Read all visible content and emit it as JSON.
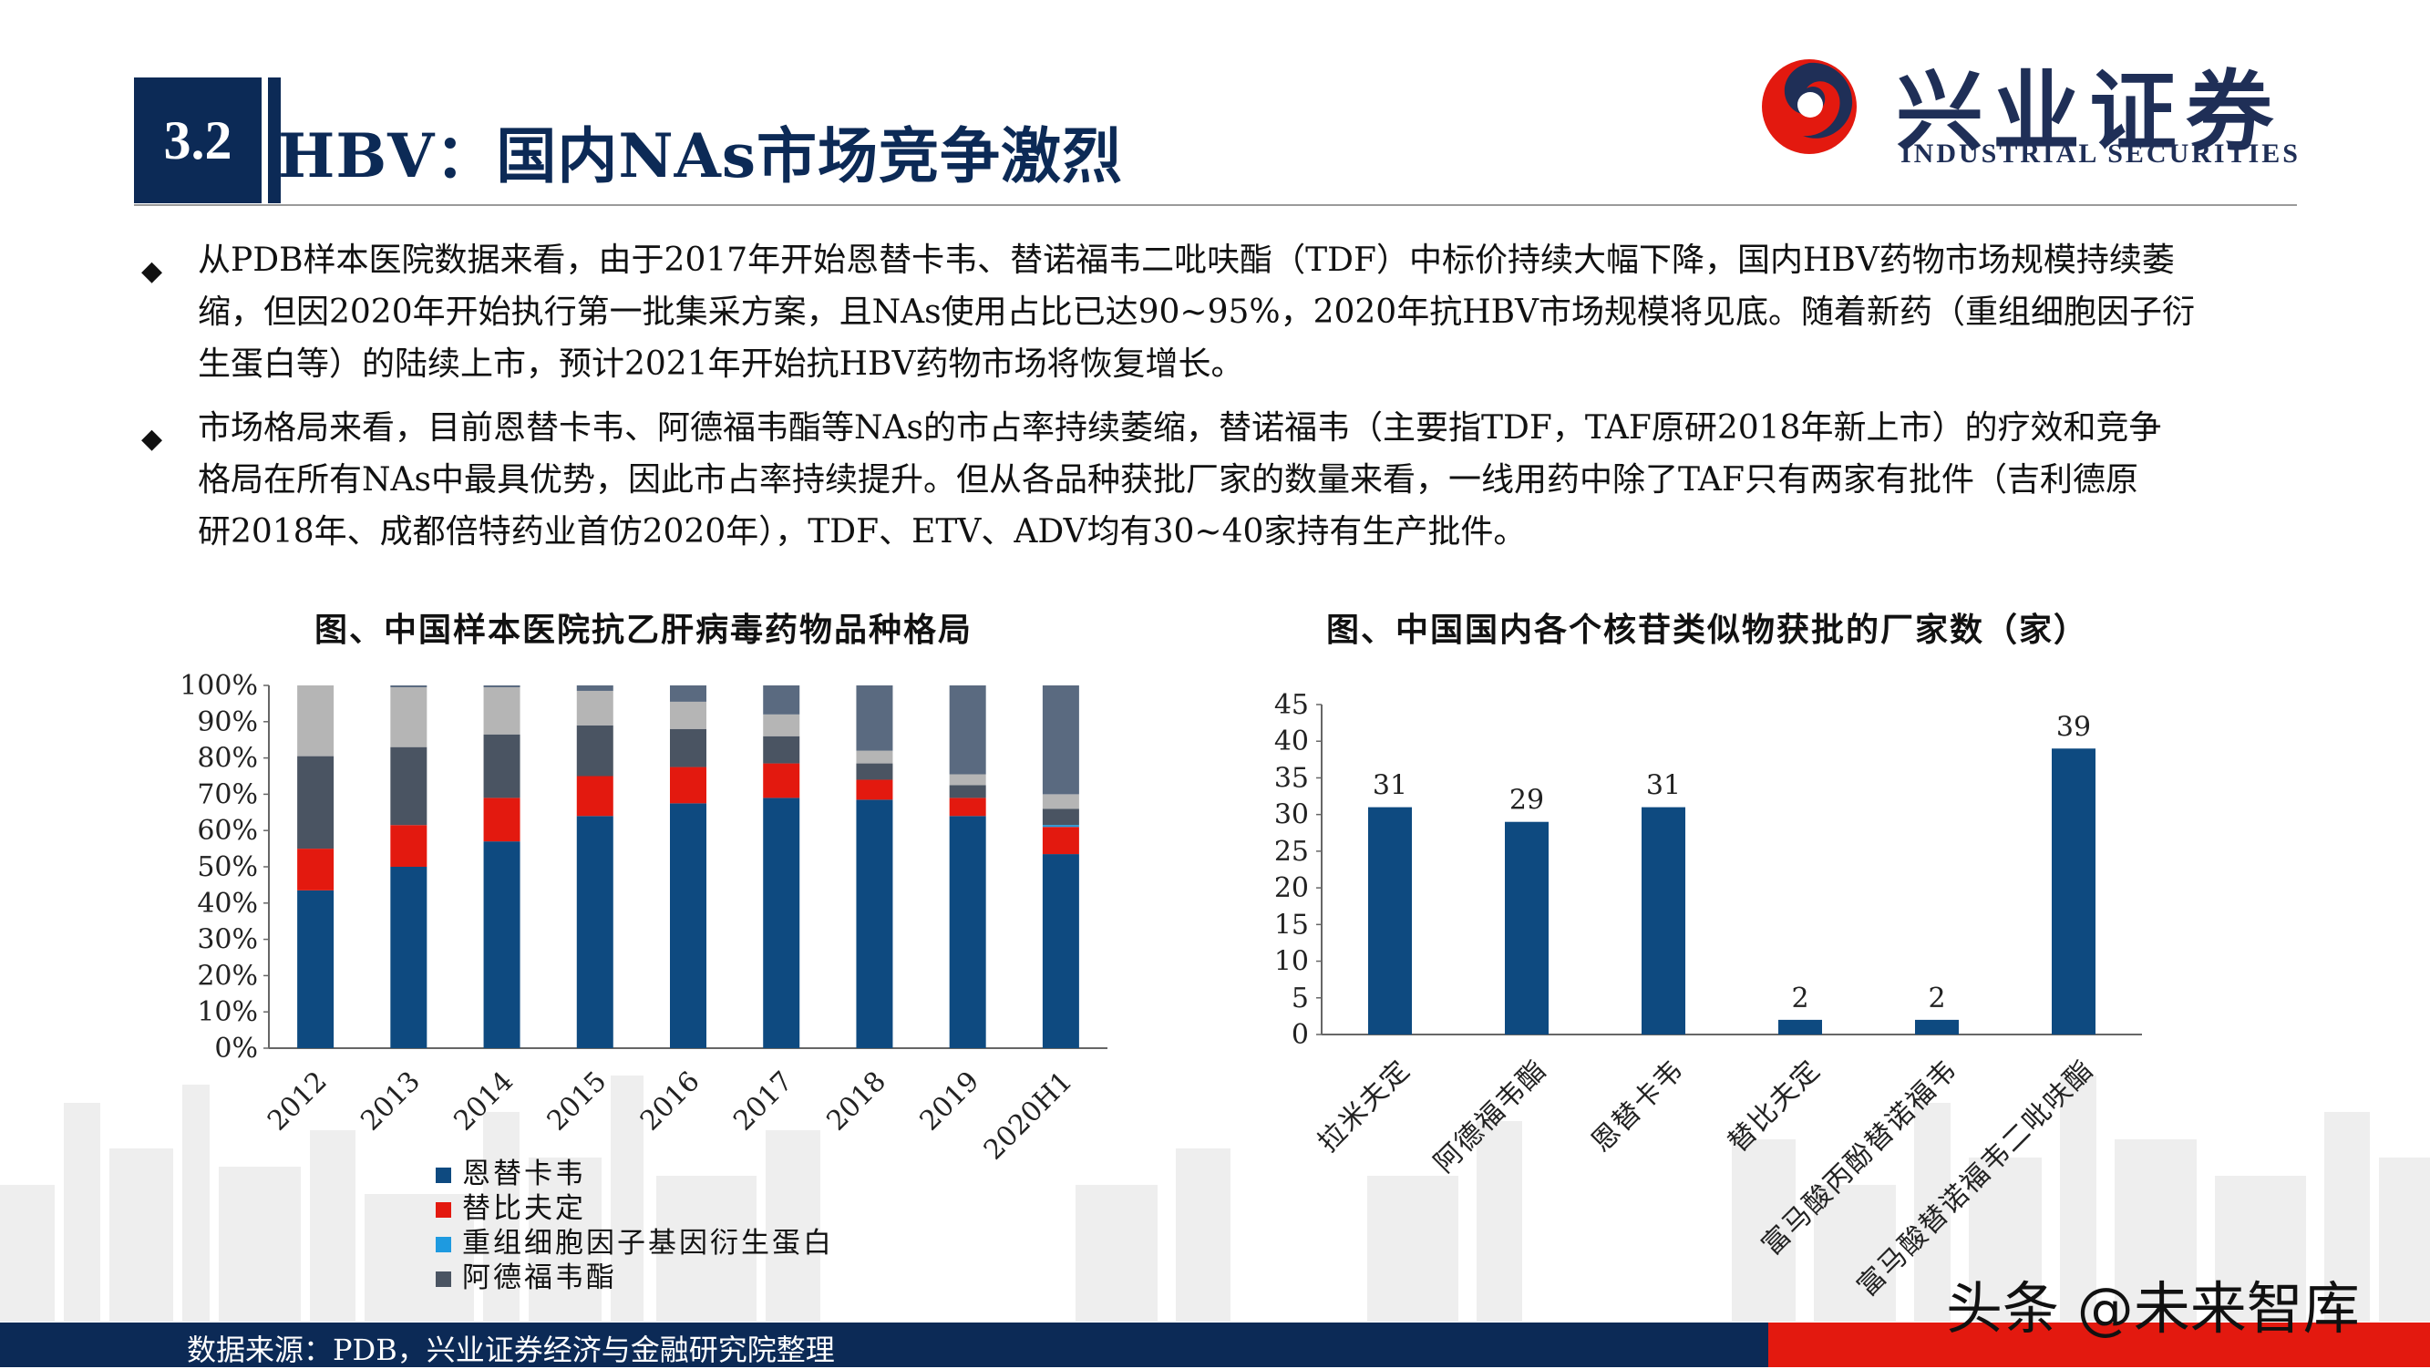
{
  "header": {
    "section_number": "3.2",
    "title": "HBV：国内NAs市场竞争激烈",
    "logo_cn": "兴业证券",
    "logo_en": "INDUSTRIAL SECURITIES"
  },
  "bullets": [
    {
      "lines": [
        "从PDB样本医院数据来看，由于2017年开始恩替卡韦、替诺福韦二吡呋酯（TDF）中标价持续大幅下降，国内HBV药物市场规模持续萎",
        "缩，但因2020年开始执行第一批集采方案，且NAs使用占比已达90~95%，2020年抗HBV市场规模将见底。随着新药（重组细胞因子衍",
        "生蛋白等）的陆续上市，预计2021年开始抗HBV药物市场将恢复增长。"
      ]
    },
    {
      "lines": [
        "市场格局来看，目前恩替卡韦、阿德福韦酯等NAs的市占率持续萎缩，替诺福韦（主要指TDF，TAF原研2018年新上市）的疗效和竞争",
        "格局在所有NAs中最具优势，因此市占率持续提升。但从各品种获批厂家的数量来看，一线用药中除了TAF只有两家有批件（吉利德原",
        "研2018年、成都倍特药业首仿2020年），TDF、ETV、ADV均有30~40家持有生产批件。"
      ]
    }
  ],
  "colors": {
    "navy": "#0c2a56",
    "bar_blue": "#0e4a80",
    "red": "#e3190f",
    "light_blue": "#1e9ae0",
    "dark_gray": "#4a5462",
    "mid_gray": "#9b9b9b",
    "light_gray": "#b5b5b5"
  },
  "chart_data": [
    {
      "type": "bar",
      "stacked": true,
      "title": "图、中国样本医院抗乙肝病毒药物品种格局",
      "categories": [
        "2012",
        "2013",
        "2014",
        "2015",
        "2016",
        "2017",
        "2018",
        "2019",
        "2020H1"
      ],
      "y_ticks": [
        "0%",
        "10%",
        "20%",
        "30%",
        "40%",
        "50%",
        "60%",
        "70%",
        "80%",
        "90%",
        "100%"
      ],
      "ylim": [
        0,
        100
      ],
      "legend_position": "bottom",
      "series": [
        {
          "name": "恩替卡韦",
          "color": "#0e4a80",
          "values": [
            43.5,
            50,
            57,
            64,
            67.5,
            69,
            68.5,
            64,
            53.5
          ]
        },
        {
          "name": "替比夫定",
          "color": "#e3190f",
          "values": [
            11.5,
            11.5,
            12,
            11,
            10,
            9.5,
            5.5,
            5,
            7.5
          ]
        },
        {
          "name": "重组细胞因子基因衍生蛋白",
          "color": "#1e9ae0",
          "values": [
            0,
            0,
            0,
            0,
            0,
            0,
            0,
            0,
            0.5
          ]
        },
        {
          "name": "阿德福韦酯",
          "color": "#4a5462",
          "values": [
            25.5,
            21.5,
            17.5,
            14,
            10.5,
            7.5,
            4.5,
            3.5,
            4.5
          ]
        },
        {
          "name": "",
          "color": "#b5b5b5",
          "values": [
            19.5,
            16.5,
            13,
            9.5,
            7.5,
            6,
            3.5,
            3,
            4
          ]
        },
        {
          "name": "",
          "color": "#5a6a80",
          "values": [
            0,
            0.5,
            0.5,
            1.5,
            4.5,
            8,
            18,
            24.5,
            30
          ]
        }
      ]
    },
    {
      "type": "bar",
      "title": "图、中国国内各个核苷类似物获批的厂家数（家）",
      "categories": [
        "拉米夫定",
        "阿德福韦酯",
        "恩替卡韦",
        "替比夫定",
        "富马酸丙酚替诺福韦",
        "富马酸替诺福韦二吡呋酯"
      ],
      "values": [
        31,
        29,
        31,
        2,
        2,
        39
      ],
      "data_labels": [
        "31",
        "29",
        "31",
        "2",
        "2",
        "39"
      ],
      "y_ticks": [
        "0",
        "5",
        "10",
        "15",
        "20",
        "25",
        "30",
        "35",
        "40",
        "45"
      ],
      "ylim": [
        0,
        45
      ],
      "color": "#0e4a80"
    }
  ],
  "footer": {
    "source": "数据来源：PDB，兴业证券经济与金融研究院整理",
    "watermark": "头条 @未来智库"
  }
}
